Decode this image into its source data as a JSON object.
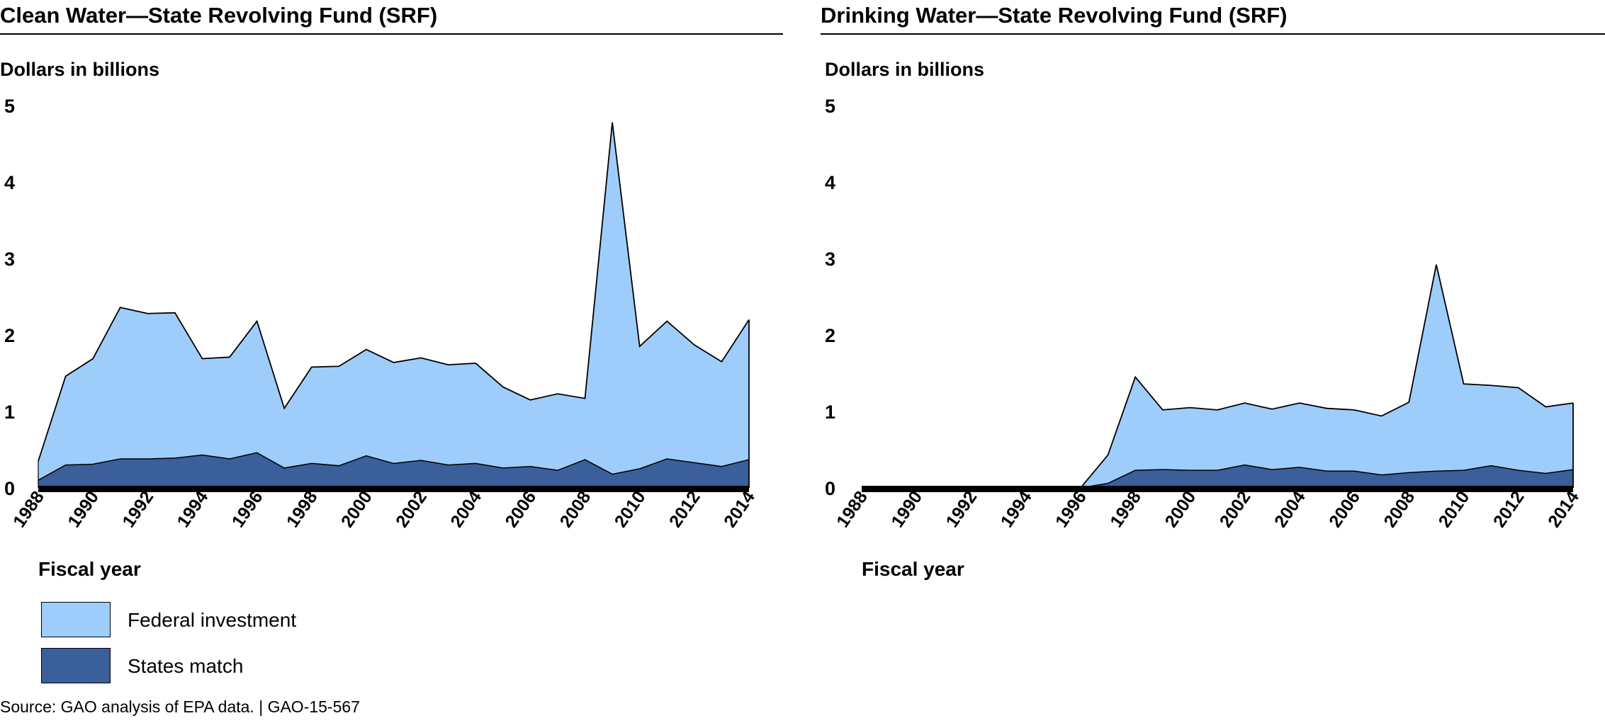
{
  "colors": {
    "federal": "#9ecdfc",
    "states": "#3a5f9a",
    "axis": "#000000"
  },
  "legend": {
    "federal_label": "Federal investment",
    "states_label": "States match"
  },
  "source": "Source: GAO analysis of EPA data.  | GAO-15-567",
  "chart_data": [
    {
      "type": "area",
      "stacked": true,
      "title": "Clean Water—State Revolving Fund (SRF)",
      "ylabel": "Dollars in billions",
      "xlabel": "Fiscal year",
      "ylim": [
        0,
        5
      ],
      "yticks": [
        "0",
        "1",
        "2",
        "3",
        "4",
        "5"
      ],
      "xticks": [
        "1988",
        "1990",
        "1992",
        "1994",
        "1996",
        "1998",
        "2000",
        "2002",
        "2004",
        "2006",
        "2008",
        "2010",
        "2012",
        "2014"
      ],
      "x": [
        1988,
        1989,
        1990,
        1991,
        1992,
        1993,
        1994,
        1995,
        1996,
        1997,
        1998,
        1999,
        2000,
        2001,
        2002,
        2003,
        2004,
        2005,
        2006,
        2007,
        2008,
        2009,
        2010,
        2011,
        2012,
        2013,
        2014
      ],
      "series": [
        {
          "name": "States match",
          "values": [
            0.1,
            0.3,
            0.31,
            0.38,
            0.38,
            0.39,
            0.43,
            0.38,
            0.46,
            0.26,
            0.32,
            0.29,
            0.42,
            0.32,
            0.36,
            0.3,
            0.32,
            0.26,
            0.28,
            0.23,
            0.37,
            0.18,
            0.25,
            0.38,
            0.33,
            0.28,
            0.37
          ]
        },
        {
          "name": "Federal investment",
          "values": [
            0.25,
            1.16,
            1.38,
            1.98,
            1.9,
            1.9,
            1.26,
            1.33,
            1.72,
            0.78,
            1.26,
            1.3,
            1.39,
            1.32,
            1.34,
            1.31,
            1.31,
            1.06,
            0.87,
            1.0,
            0.8,
            4.6,
            1.6,
            1.8,
            1.54,
            1.37,
            1.83
          ]
        }
      ]
    },
    {
      "type": "area",
      "stacked": true,
      "title": "Drinking Water—State Revolving Fund (SRF)",
      "ylabel": "Dollars in billions",
      "xlabel": "Fiscal year",
      "ylim": [
        0,
        5
      ],
      "yticks": [
        "0",
        "1",
        "2",
        "3",
        "4",
        "5"
      ],
      "xticks": [
        "1988",
        "1990",
        "1992",
        "1994",
        "1996",
        "1998",
        "2000",
        "2002",
        "2004",
        "2006",
        "2008",
        "2010",
        "2012",
        "2014"
      ],
      "x": [
        1988,
        1989,
        1990,
        1991,
        1992,
        1993,
        1994,
        1995,
        1996,
        1997,
        1998,
        1999,
        2000,
        2001,
        2002,
        2003,
        2004,
        2005,
        2006,
        2007,
        2008,
        2009,
        2010,
        2011,
        2012,
        2013,
        2014
      ],
      "series": [
        {
          "name": "States match",
          "values": [
            0,
            0,
            0,
            0,
            0,
            0,
            0,
            0,
            0,
            0.06,
            0.23,
            0.24,
            0.23,
            0.23,
            0.3,
            0.24,
            0.27,
            0.22,
            0.22,
            0.17,
            0.2,
            0.22,
            0.23,
            0.29,
            0.23,
            0.19,
            0.24
          ]
        },
        {
          "name": "Federal investment",
          "values": [
            0,
            0,
            0,
            0,
            0,
            0,
            0,
            0,
            0,
            0.37,
            1.22,
            0.78,
            0.82,
            0.79,
            0.81,
            0.79,
            0.84,
            0.82,
            0.8,
            0.77,
            0.92,
            2.7,
            1.13,
            1.05,
            1.08,
            0.87,
            0.87
          ]
        }
      ]
    }
  ]
}
